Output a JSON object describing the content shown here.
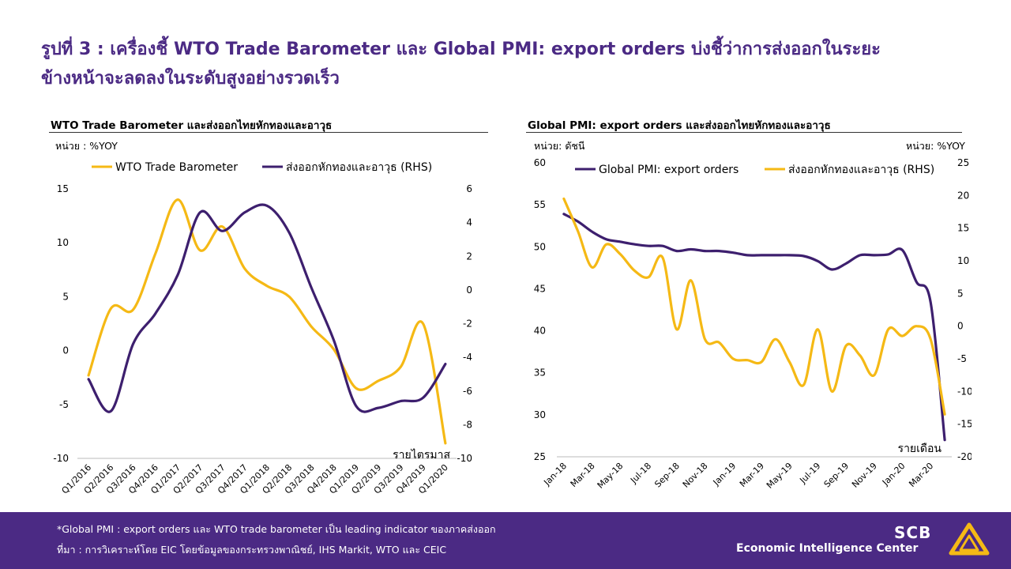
{
  "title_line1": "รูปที่ 3 : เครื่องชี้ WTO Trade Barometer และ Global PMI: export orders บ่งชี้ว่าการส่งออกในระยะ",
  "title_line2": "ข้างหน้าจะลดลงในระดับสูงอย่างรวดเร็ว",
  "colors": {
    "purple": "#3d1f6e",
    "gold": "#f5b915",
    "brand": "#4b2a84"
  },
  "footer": {
    "note1": "*Global PMI : export orders และ WTO trade barometer เป็น leading indicator ของภาคส่งออก",
    "note2": "ที่มา : การวิเคราะห์โดย EIC โดยข้อมูลของกระทรวงพาณิชย์, IHS Markit, WTO และ CEIC",
    "brand": "SCB",
    "brand_sub": "Economic Intelligence Center"
  },
  "chart_data": [
    {
      "type": "line",
      "title": "WTO Trade Barometer และส่งออกไทยหักทองและอาวุธ",
      "ylabel_left": "หน่วย : %YOY",
      "ylabel_right": "",
      "xlabel": "รายไตรมาส",
      "categories": [
        "Q1/2016",
        "Q2/2016",
        "Q3/2016",
        "Q4/2016",
        "Q1/2017",
        "Q2/2017",
        "Q3/2017",
        "Q4/2017",
        "Q1/2018",
        "Q2/2018",
        "Q3/2018",
        "Q4/2018",
        "Q1/2019",
        "Q2/2019",
        "Q3/2019",
        "Q4/2019",
        "Q1/2020"
      ],
      "ylim_left": [
        -10,
        15
      ],
      "yticks_left": [
        -10,
        -5,
        0,
        5,
        10,
        15
      ],
      "ylim_right": [
        -10,
        6
      ],
      "yticks_right": [
        -10,
        -8,
        -6,
        -4,
        -2,
        0,
        2,
        4,
        6
      ],
      "legend_position": "top",
      "series": [
        {
          "name": "WTO Trade Barometer",
          "axis": "left",
          "color": "#f5b915",
          "values": [
            -2.3,
            3.9,
            3.8,
            9.0,
            14.0,
            9.3,
            11.5,
            7.6,
            6.0,
            5.0,
            2.2,
            0.1,
            -3.5,
            -2.8,
            -1.5,
            2.5,
            -8.6
          ]
        },
        {
          "name": "ส่งออกหักทองและอาวุธ (RHS)",
          "axis": "right",
          "color": "#3d1f6e",
          "values": [
            -5.3,
            -7.2,
            -3.2,
            -1.4,
            0.9,
            4.6,
            3.5,
            4.6,
            5.0,
            3.4,
            0.1,
            -3.0,
            -6.9,
            -7.0,
            -6.6,
            -6.4,
            -4.4
          ]
        }
      ]
    },
    {
      "type": "line",
      "title": "Global PMI: export orders และส่งออกไทยหักทองและอาวุธ",
      "ylabel_left": "หน่วย: ดัชนี",
      "ylabel_right": "หน่วย: %YOY",
      "xlabel": "รายเดือน",
      "categories": [
        "Jan-18",
        "Feb-18",
        "Mar-18",
        "Apr-18",
        "May-18",
        "Jun-18",
        "Jul-18",
        "Aug-18",
        "Sep-18",
        "Oct-18",
        "Nov-18",
        "Dec-18",
        "Jan-19",
        "Feb-19",
        "Mar-19",
        "Apr-19",
        "May-19",
        "Jun-19",
        "Jul-19",
        "Aug-19",
        "Sep-19",
        "Oct-19",
        "Nov-19",
        "Dec-19",
        "Jan-20",
        "Feb-20",
        "Mar-20",
        "Apr-20"
      ],
      "tick_labels": [
        "Jan-18",
        "Mar-18",
        "May-18",
        "Jul-18",
        "Sep-18",
        "Nov-18",
        "Jan-19",
        "Mar-19",
        "May-19",
        "Jul-19",
        "Sep-19",
        "Nov-19",
        "Jan-20",
        "Mar-20"
      ],
      "ylim_left": [
        25,
        60
      ],
      "yticks_left": [
        25,
        30,
        35,
        40,
        45,
        50,
        55,
        60
      ],
      "ylim_right": [
        -20,
        25
      ],
      "yticks_right": [
        -20,
        -15,
        -10,
        -5,
        0,
        5,
        10,
        15,
        20,
        25
      ],
      "legend_position": "top",
      "series": [
        {
          "name": "Global PMI: export orders",
          "axis": "left",
          "color": "#3d1f6e",
          "values": [
            53.9,
            53.0,
            51.8,
            50.9,
            50.6,
            50.3,
            50.1,
            50.1,
            49.5,
            49.7,
            49.5,
            49.5,
            49.3,
            49.0,
            49.0,
            49.0,
            49.0,
            48.9,
            48.3,
            47.3,
            48.0,
            49.0,
            49.0,
            49.1,
            49.6,
            45.8,
            43.4,
            27.0
          ]
        },
        {
          "name": "ส่งออกหักทองและอาวุธ (RHS)",
          "axis": "right",
          "color": "#f5b915",
          "values": [
            19.5,
            14.5,
            9.0,
            12.5,
            11.0,
            8.5,
            7.5,
            10.5,
            -0.5,
            7.0,
            -2.0,
            -2.5,
            -5.0,
            -5.2,
            -5.5,
            -2.0,
            -5.5,
            -9.0,
            -0.5,
            -10.0,
            -3.0,
            -4.5,
            -7.5,
            -0.5,
            -1.5,
            0.0,
            -2.0,
            -13.5
          ]
        }
      ]
    }
  ]
}
